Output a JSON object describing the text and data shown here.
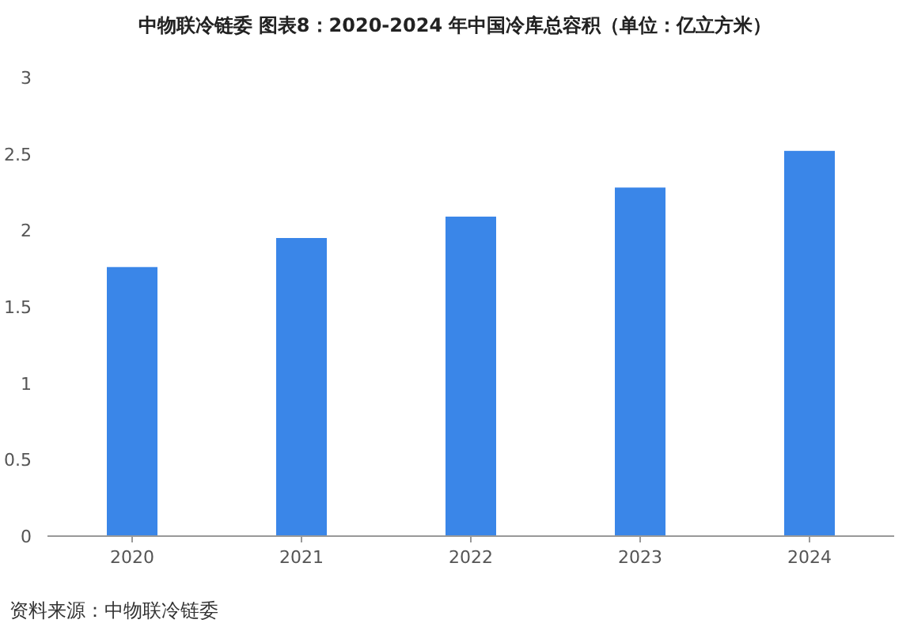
{
  "chart_data": {
    "type": "bar",
    "title": "中物联冷链委  图表8：2020-2024 年中国冷库总容积（单位：亿立方米）",
    "categories": [
      "2020",
      "2021",
      "2022",
      "2023",
      "2024"
    ],
    "values": [
      1.76,
      1.95,
      2.09,
      2.28,
      2.52
    ],
    "color": "#3a86e8",
    "ylim": [
      0,
      3
    ],
    "yticks": [
      0,
      0.5,
      1,
      1.5,
      2,
      2.5,
      3
    ],
    "grid": false,
    "annotations": [
      "资料来源：中物联冷链委"
    ]
  }
}
